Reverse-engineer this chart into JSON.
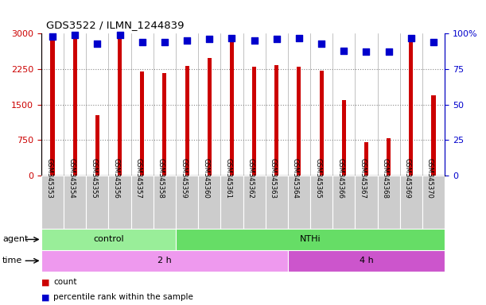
{
  "title": "GDS3522 / ILMN_1244839",
  "samples": [
    "GSM345353",
    "GSM345354",
    "GSM345355",
    "GSM345356",
    "GSM345357",
    "GSM345358",
    "GSM345359",
    "GSM345360",
    "GSM345361",
    "GSM345362",
    "GSM345363",
    "GSM345364",
    "GSM345365",
    "GSM345366",
    "GSM345367",
    "GSM345368",
    "GSM345369",
    "GSM345370"
  ],
  "counts": [
    2920,
    2960,
    1280,
    2960,
    2200,
    2160,
    2310,
    2490,
    2870,
    2300,
    2330,
    2290,
    2220,
    1590,
    710,
    790,
    2860,
    1690
  ],
  "percentile_ranks": [
    98,
    99,
    93,
    99,
    94,
    94,
    95,
    96,
    97,
    95,
    96,
    97,
    93,
    88,
    87,
    87,
    97,
    94
  ],
  "bar_color": "#cc0000",
  "dot_color": "#0000cc",
  "ylim_left": [
    0,
    3000
  ],
  "ylim_right": [
    0,
    100
  ],
  "yticks_left": [
    0,
    750,
    1500,
    2250,
    3000
  ],
  "ytick_labels_left": [
    "0",
    "750",
    "1500",
    "2250",
    "3000"
  ],
  "yticks_right": [
    0,
    25,
    50,
    75,
    100
  ],
  "ytick_labels_right": [
    "0",
    "25",
    "50",
    "75",
    "100%"
  ],
  "agent_groups": [
    {
      "label": "control",
      "start": 0,
      "end": 5,
      "color": "#99ee99"
    },
    {
      "label": "NTHi",
      "start": 6,
      "end": 17,
      "color": "#66dd66"
    }
  ],
  "time_groups": [
    {
      "label": "2 h",
      "start": 0,
      "end": 10,
      "color": "#ee99ee"
    },
    {
      "label": "4 h",
      "start": 11,
      "end": 17,
      "color": "#cc55cc"
    }
  ],
  "legend_items": [
    {
      "label": "count",
      "color": "#cc0000"
    },
    {
      "label": "percentile rank within the sample",
      "color": "#0000cc"
    }
  ],
  "bar_width": 0.18,
  "dot_size": 30,
  "xtick_bg_color": "#cccccc",
  "grid_color": "#888888"
}
